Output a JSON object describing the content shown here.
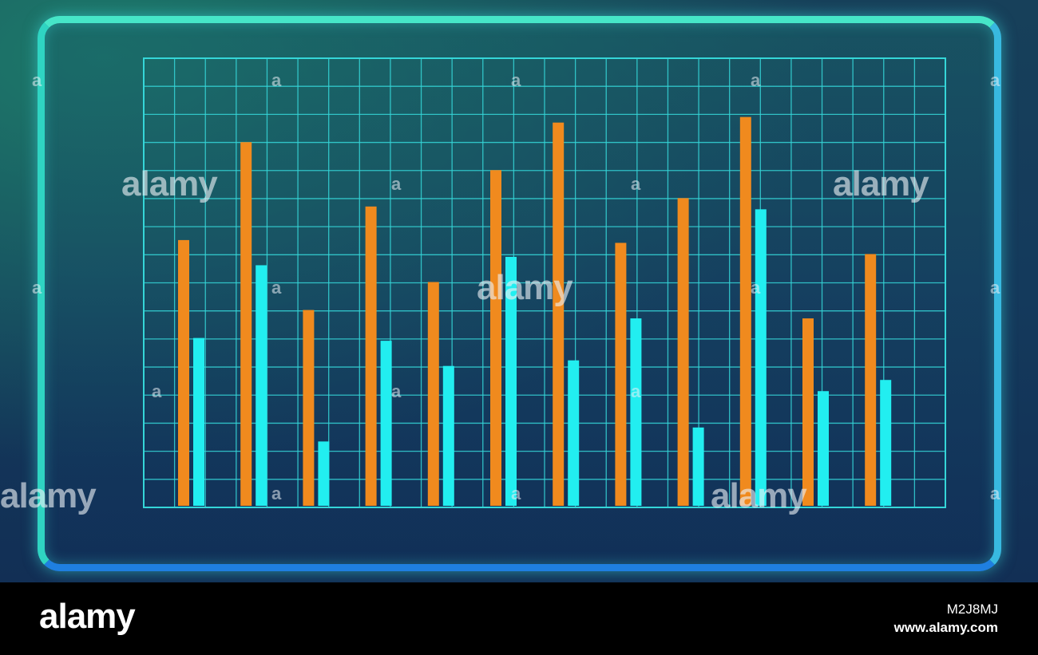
{
  "chart_data": {
    "type": "bar",
    "title": "",
    "xlabel": "",
    "ylabel": "",
    "ylim": [
      0,
      16
    ],
    "grid": true,
    "legend": "none",
    "categories": [
      "",
      "",
      "",
      "",
      "",
      "",
      "",
      "",
      "",
      "",
      "",
      ""
    ],
    "series": [
      {
        "color": "#f08a1e",
        "values": [
          9.5,
          13.0,
          7.0,
          10.7,
          8.0,
          12.0,
          13.7,
          9.4,
          11.0,
          13.9,
          6.7,
          9.0
        ]
      },
      {
        "color": "#22eef0",
        "values": [
          6.0,
          8.6,
          2.3,
          5.9,
          5.0,
          8.9,
          5.2,
          6.7,
          2.8,
          10.6,
          4.1,
          4.5
        ]
      }
    ]
  },
  "watermark": {
    "brand": "alamy",
    "small_mark": "a",
    "image_id": "M2J8MJ",
    "url": "www.alamy.com"
  },
  "colors": {
    "grid": "#35d6d8",
    "frame": "#3fd1c9"
  }
}
